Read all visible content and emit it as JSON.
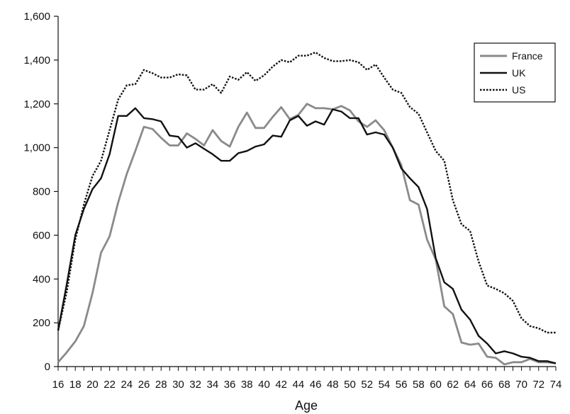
{
  "chart_data": {
    "type": "line",
    "title": "",
    "xlabel": "Age",
    "ylabel": "",
    "xlim": [
      16,
      74
    ],
    "ylim": [
      0,
      1600
    ],
    "x_ticks": [
      16,
      18,
      20,
      22,
      24,
      26,
      28,
      30,
      32,
      34,
      36,
      38,
      40,
      42,
      44,
      46,
      48,
      50,
      52,
      54,
      56,
      58,
      60,
      62,
      64,
      66,
      68,
      70,
      72,
      74
    ],
    "y_ticks": [
      0,
      200,
      400,
      600,
      800,
      1000,
      1200,
      1400,
      1600
    ],
    "y_tick_labels": [
      "0",
      "200",
      "400",
      "600",
      "800",
      "1,000",
      "1,200",
      "1,400",
      "1,600"
    ],
    "grid": false,
    "legend_position": "top-right",
    "x": [
      16,
      17,
      18,
      19,
      20,
      21,
      22,
      23,
      24,
      25,
      26,
      27,
      28,
      29,
      30,
      31,
      32,
      33,
      34,
      35,
      36,
      37,
      38,
      39,
      40,
      41,
      42,
      43,
      44,
      45,
      46,
      47,
      48,
      49,
      50,
      51,
      52,
      53,
      54,
      55,
      56,
      57,
      58,
      59,
      60,
      61,
      62,
      63,
      64,
      65,
      66,
      67,
      68,
      69,
      70,
      71,
      72,
      73,
      74
    ],
    "series": [
      {
        "name": "France",
        "color": "#8a8a8a",
        "style": "solid",
        "values": [
          20,
          65,
          115,
          185,
          335,
          520,
          595,
          750,
          880,
          985,
          1095,
          1085,
          1045,
          1010,
          1010,
          1065,
          1040,
          1010,
          1080,
          1030,
          1005,
          1095,
          1160,
          1090,
          1090,
          1140,
          1185,
          1130,
          1150,
          1200,
          1180,
          1180,
          1175,
          1190,
          1170,
          1120,
          1095,
          1125,
          1080,
          1000,
          920,
          760,
          740,
          580,
          490,
          275,
          240,
          110,
          100,
          105,
          45,
          40,
          10,
          20,
          20,
          35,
          20,
          20,
          15
        ]
      },
      {
        "name": "UK",
        "color": "#111111",
        "style": "solid",
        "values": [
          165,
          375,
          600,
          720,
          810,
          860,
          970,
          1145,
          1145,
          1180,
          1135,
          1130,
          1120,
          1055,
          1050,
          1000,
          1020,
          995,
          970,
          940,
          940,
          975,
          985,
          1005,
          1015,
          1055,
          1050,
          1125,
          1145,
          1100,
          1120,
          1105,
          1175,
          1165,
          1135,
          1135,
          1060,
          1070,
          1060,
          1000,
          905,
          860,
          820,
          720,
          495,
          385,
          355,
          260,
          215,
          140,
          105,
          60,
          70,
          60,
          45,
          40,
          25,
          25,
          15
        ]
      },
      {
        "name": "US",
        "color": "#111111",
        "style": "dotted",
        "values": [
          165,
          340,
          580,
          740,
          870,
          940,
          1080,
          1220,
          1285,
          1290,
          1355,
          1340,
          1320,
          1320,
          1335,
          1330,
          1265,
          1265,
          1290,
          1250,
          1325,
          1310,
          1345,
          1305,
          1330,
          1370,
          1400,
          1390,
          1420,
          1420,
          1435,
          1410,
          1395,
          1395,
          1400,
          1390,
          1355,
          1380,
          1320,
          1265,
          1250,
          1185,
          1155,
          1070,
          985,
          940,
          760,
          650,
          620,
          480,
          370,
          355,
          335,
          300,
          220,
          185,
          175,
          155,
          155
        ]
      }
    ]
  }
}
